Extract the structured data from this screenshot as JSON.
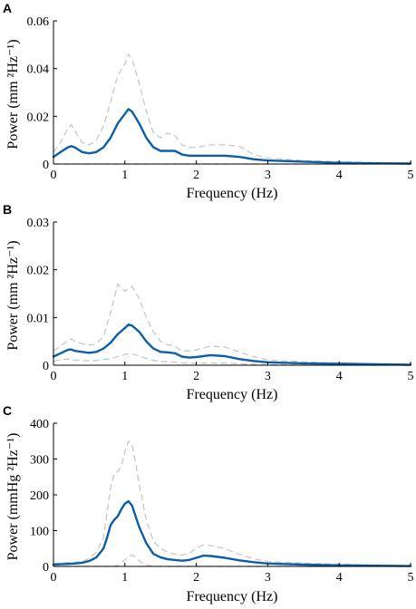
{
  "colors": {
    "mean": "#0a5fab",
    "band": "#c8c8c8",
    "zero": "#222222",
    "axis": "#000000"
  },
  "chart_data": [
    {
      "panel_label": "A",
      "type": "line",
      "xlabel": "Frequency (Hz)",
      "ylabel": "Power (mm ²Hz⁻¹)",
      "xlim": [
        0,
        5
      ],
      "ylim": [
        0,
        0.06
      ],
      "xticks": [
        "0",
        "1",
        "2",
        "3",
        "4",
        "5"
      ],
      "yticks": [
        "0",
        "0.02",
        "0.04",
        "0.06"
      ],
      "x": [
        0,
        0.1,
        0.2,
        0.25,
        0.3,
        0.4,
        0.5,
        0.6,
        0.7,
        0.8,
        0.9,
        1.0,
        1.05,
        1.1,
        1.2,
        1.3,
        1.4,
        1.5,
        1.6,
        1.7,
        1.8,
        1.9,
        2.0,
        2.2,
        2.4,
        2.6,
        2.8,
        3.0,
        3.5,
        4.0,
        4.5,
        5.0
      ],
      "series": [
        {
          "role": "mean",
          "values": [
            0.003,
            0.005,
            0.007,
            0.0075,
            0.007,
            0.005,
            0.0045,
            0.005,
            0.007,
            0.011,
            0.017,
            0.021,
            0.023,
            0.022,
            0.017,
            0.011,
            0.007,
            0.0055,
            0.0055,
            0.0055,
            0.004,
            0.0035,
            0.0035,
            0.0035,
            0.0035,
            0.003,
            0.002,
            0.0015,
            0.001,
            0.0005,
            0.0003,
            0.0002
          ]
        },
        {
          "role": "upper",
          "values": [
            0.005,
            0.009,
            0.015,
            0.0165,
            0.014,
            0.009,
            0.008,
            0.01,
            0.016,
            0.026,
            0.037,
            0.042,
            0.046,
            0.044,
            0.034,
            0.022,
            0.013,
            0.011,
            0.013,
            0.012,
            0.008,
            0.007,
            0.007,
            0.008,
            0.008,
            0.0075,
            0.004,
            0.0025,
            0.0015,
            0.001,
            0.0006,
            0.0004
          ]
        },
        {
          "role": "lower",
          "values": [
            0,
            0,
            0,
            0,
            0,
            0,
            0,
            0,
            0,
            0,
            0,
            0,
            0,
            0,
            0,
            0,
            0,
            0,
            0,
            0,
            0,
            0,
            0,
            0,
            0,
            0,
            0,
            0,
            0,
            0,
            0,
            0
          ]
        }
      ]
    },
    {
      "panel_label": "B",
      "type": "line",
      "xlabel": "Frequency (Hz)",
      "ylabel": "Power (mm ²Hz⁻¹)",
      "xlim": [
        0,
        5
      ],
      "ylim": [
        0,
        0.03
      ],
      "xticks": [
        "0",
        "1",
        "2",
        "3",
        "4",
        "5"
      ],
      "yticks": [
        "0",
        "0.01",
        "0.02",
        "0.03"
      ],
      "x": [
        0,
        0.1,
        0.2,
        0.25,
        0.3,
        0.4,
        0.5,
        0.6,
        0.7,
        0.8,
        0.9,
        1.0,
        1.05,
        1.1,
        1.2,
        1.3,
        1.4,
        1.5,
        1.6,
        1.7,
        1.8,
        1.9,
        2.0,
        2.2,
        2.4,
        2.6,
        2.8,
        3.0,
        3.5,
        4.0,
        4.5,
        5.0
      ],
      "series": [
        {
          "role": "mean",
          "values": [
            0.0018,
            0.0025,
            0.0032,
            0.0033,
            0.003,
            0.0028,
            0.0026,
            0.0028,
            0.0035,
            0.0047,
            0.0065,
            0.0078,
            0.0085,
            0.0083,
            0.007,
            0.005,
            0.0035,
            0.0028,
            0.0027,
            0.0025,
            0.0018,
            0.0016,
            0.0017,
            0.0021,
            0.0019,
            0.0013,
            0.0009,
            0.0006,
            0.0004,
            0.0003,
            0.0002,
            0.0001
          ]
        },
        {
          "role": "upper",
          "values": [
            0.003,
            0.004,
            0.0052,
            0.0055,
            0.005,
            0.0045,
            0.0042,
            0.0045,
            0.006,
            0.011,
            0.017,
            0.0155,
            0.016,
            0.0165,
            0.014,
            0.01,
            0.007,
            0.005,
            0.0043,
            0.004,
            0.003,
            0.003,
            0.0032,
            0.004,
            0.0038,
            0.0028,
            0.0018,
            0.0011,
            0.0007,
            0.0005,
            0.0003,
            0.0002
          ]
        },
        {
          "role": "lower",
          "values": [
            0.0008,
            0.0012,
            0.0013,
            0.0012,
            0.0011,
            0.001,
            0.0009,
            0.001,
            0.0012,
            0.0014,
            0.0018,
            0.0022,
            0.0024,
            0.0023,
            0.002,
            0.0014,
            0.001,
            0.0008,
            0.0007,
            0.0006,
            0.0005,
            0.0004,
            0.0004,
            0.0005,
            0.0004,
            0.0003,
            0.0002,
            0.0001,
            0.0001,
            0.0001,
            0.0,
            0.0
          ]
        }
      ]
    },
    {
      "panel_label": "C",
      "type": "line",
      "xlabel": "Frequency (Hz)",
      "ylabel": "Power (mmHg ²Hz⁻¹)",
      "xlim": [
        0,
        5
      ],
      "ylim": [
        0,
        400
      ],
      "xticks": [
        "0",
        "1",
        "2",
        "3",
        "4",
        "5"
      ],
      "yticks": [
        "0",
        "100",
        "200",
        "300",
        "400"
      ],
      "x": [
        0,
        0.1,
        0.2,
        0.3,
        0.4,
        0.5,
        0.6,
        0.7,
        0.75,
        0.8,
        0.85,
        0.9,
        0.95,
        1.0,
        1.05,
        1.1,
        1.15,
        1.2,
        1.3,
        1.4,
        1.5,
        1.6,
        1.7,
        1.8,
        1.9,
        2.0,
        2.1,
        2.2,
        2.4,
        2.6,
        2.8,
        3.0,
        3.5,
        4.0,
        4.5,
        5.0
      ],
      "series": [
        {
          "role": "mean",
          "values": [
            5,
            6,
            7,
            8,
            10,
            15,
            25,
            50,
            80,
            115,
            130,
            140,
            160,
            175,
            182,
            170,
            140,
            110,
            65,
            35,
            25,
            20,
            18,
            16,
            18,
            24,
            30,
            29,
            24,
            17,
            12,
            8,
            5,
            3,
            2,
            1
          ]
        },
        {
          "role": "upper",
          "values": [
            8,
            9,
            11,
            12,
            14,
            22,
            40,
            80,
            150,
            220,
            260,
            265,
            280,
            320,
            350,
            340,
            290,
            230,
            130,
            70,
            50,
            40,
            34,
            32,
            36,
            52,
            60,
            58,
            50,
            34,
            22,
            14,
            9,
            6,
            3,
            2
          ]
        },
        {
          "role": "lower",
          "values": [
            0,
            0,
            0,
            0,
            0,
            0,
            0,
            0,
            0,
            0,
            0,
            3,
            10,
            18,
            28,
            32,
            26,
            15,
            4,
            0,
            0,
            0,
            0,
            0,
            0,
            0,
            0,
            0,
            0,
            0,
            0,
            0,
            0,
            0,
            0,
            0
          ]
        }
      ]
    }
  ]
}
